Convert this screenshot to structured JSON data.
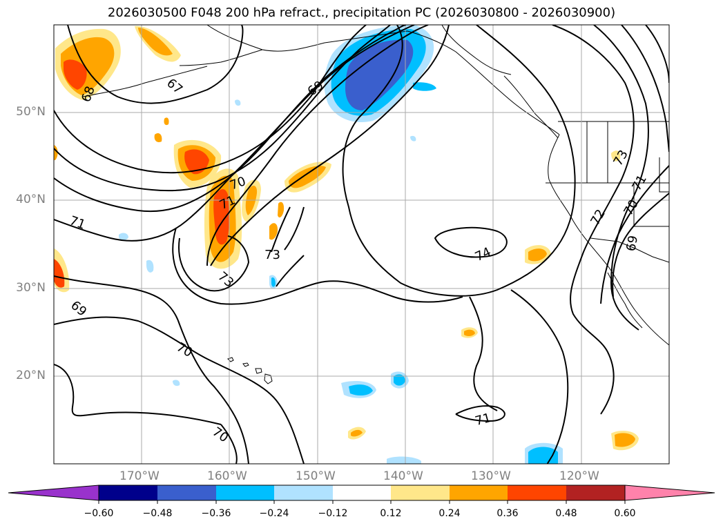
{
  "title": "2026030500 F048 200 hPa refract., precipitation PC (2026030800 - 2026030900)",
  "map": {
    "lon_range": [
      -180,
      -110
    ],
    "lat_range": [
      10,
      60
    ],
    "lat_labels": [
      "50°N",
      "40°N",
      "30°N",
      "20°N"
    ],
    "lon_labels": [
      "170°W",
      "160°W",
      "150°W",
      "140°W",
      "130°W",
      "120°W"
    ],
    "contour_labels": [
      "68",
      "67",
      "69",
      "70",
      "71",
      "71",
      "73",
      "73",
      "74",
      "69",
      "70",
      "70",
      "71",
      "73",
      "72",
      "71",
      "70",
      "69"
    ]
  },
  "colorbar": {
    "ticks": [
      "−0.60",
      "−0.48",
      "−0.36",
      "−0.24",
      "−0.12",
      "0.12",
      "0.24",
      "0.36",
      "0.48",
      "0.60"
    ],
    "colors": [
      "#9932cc",
      "#00008b",
      "#3a5fcd",
      "#00bfff",
      "#b0e2ff",
      "#ffffff",
      "#ffe78a",
      "#ffa500",
      "#ff4500",
      "#b22222",
      "#ff82ab"
    ]
  }
}
